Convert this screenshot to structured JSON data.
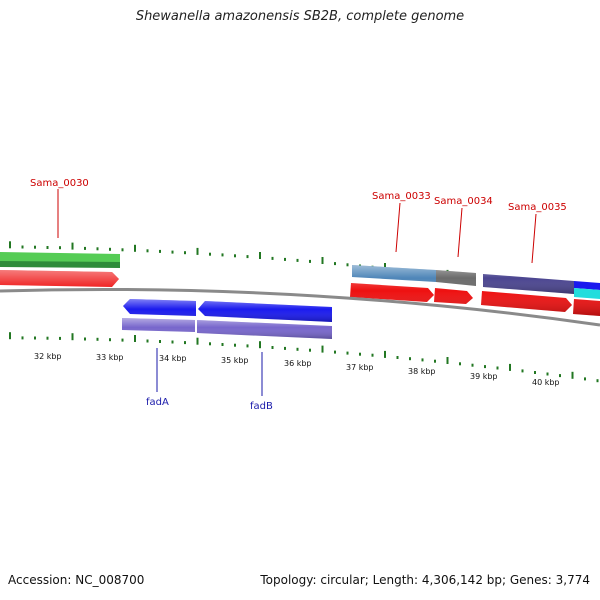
{
  "title": "Shewanella amazonensis SB2B, complete genome",
  "footer": {
    "accession": "Accession: NC_008700",
    "topology": "Topology: circular; Length: 4,306,142 bp; Genes: 3,774"
  },
  "scale": {
    "unit": "kbp",
    "labels": [
      "32 kbp",
      "33 kbp",
      "34 kbp",
      "35 kbp",
      "36 kbp",
      "37 kbp",
      "38 kbp",
      "39 kbp",
      "40 kbp"
    ]
  },
  "gene_labels_top": [
    "Sama_0030",
    "Sama_0033",
    "Sama_0034",
    "Sama_0035"
  ],
  "gene_labels_bottom": [
    "fadA",
    "fadB"
  ],
  "colors": {
    "cds": "#ee1111",
    "fadA_fadB": "#1a1aee",
    "cog_purple": "#7766cc",
    "green": "#33aa33",
    "steelblue": "#4f86b8",
    "gray": "#6b6b6b",
    "darkslate": "#4b4590",
    "cyan": "#22dddd",
    "backbone": "#888888",
    "tick": "#227722"
  }
}
